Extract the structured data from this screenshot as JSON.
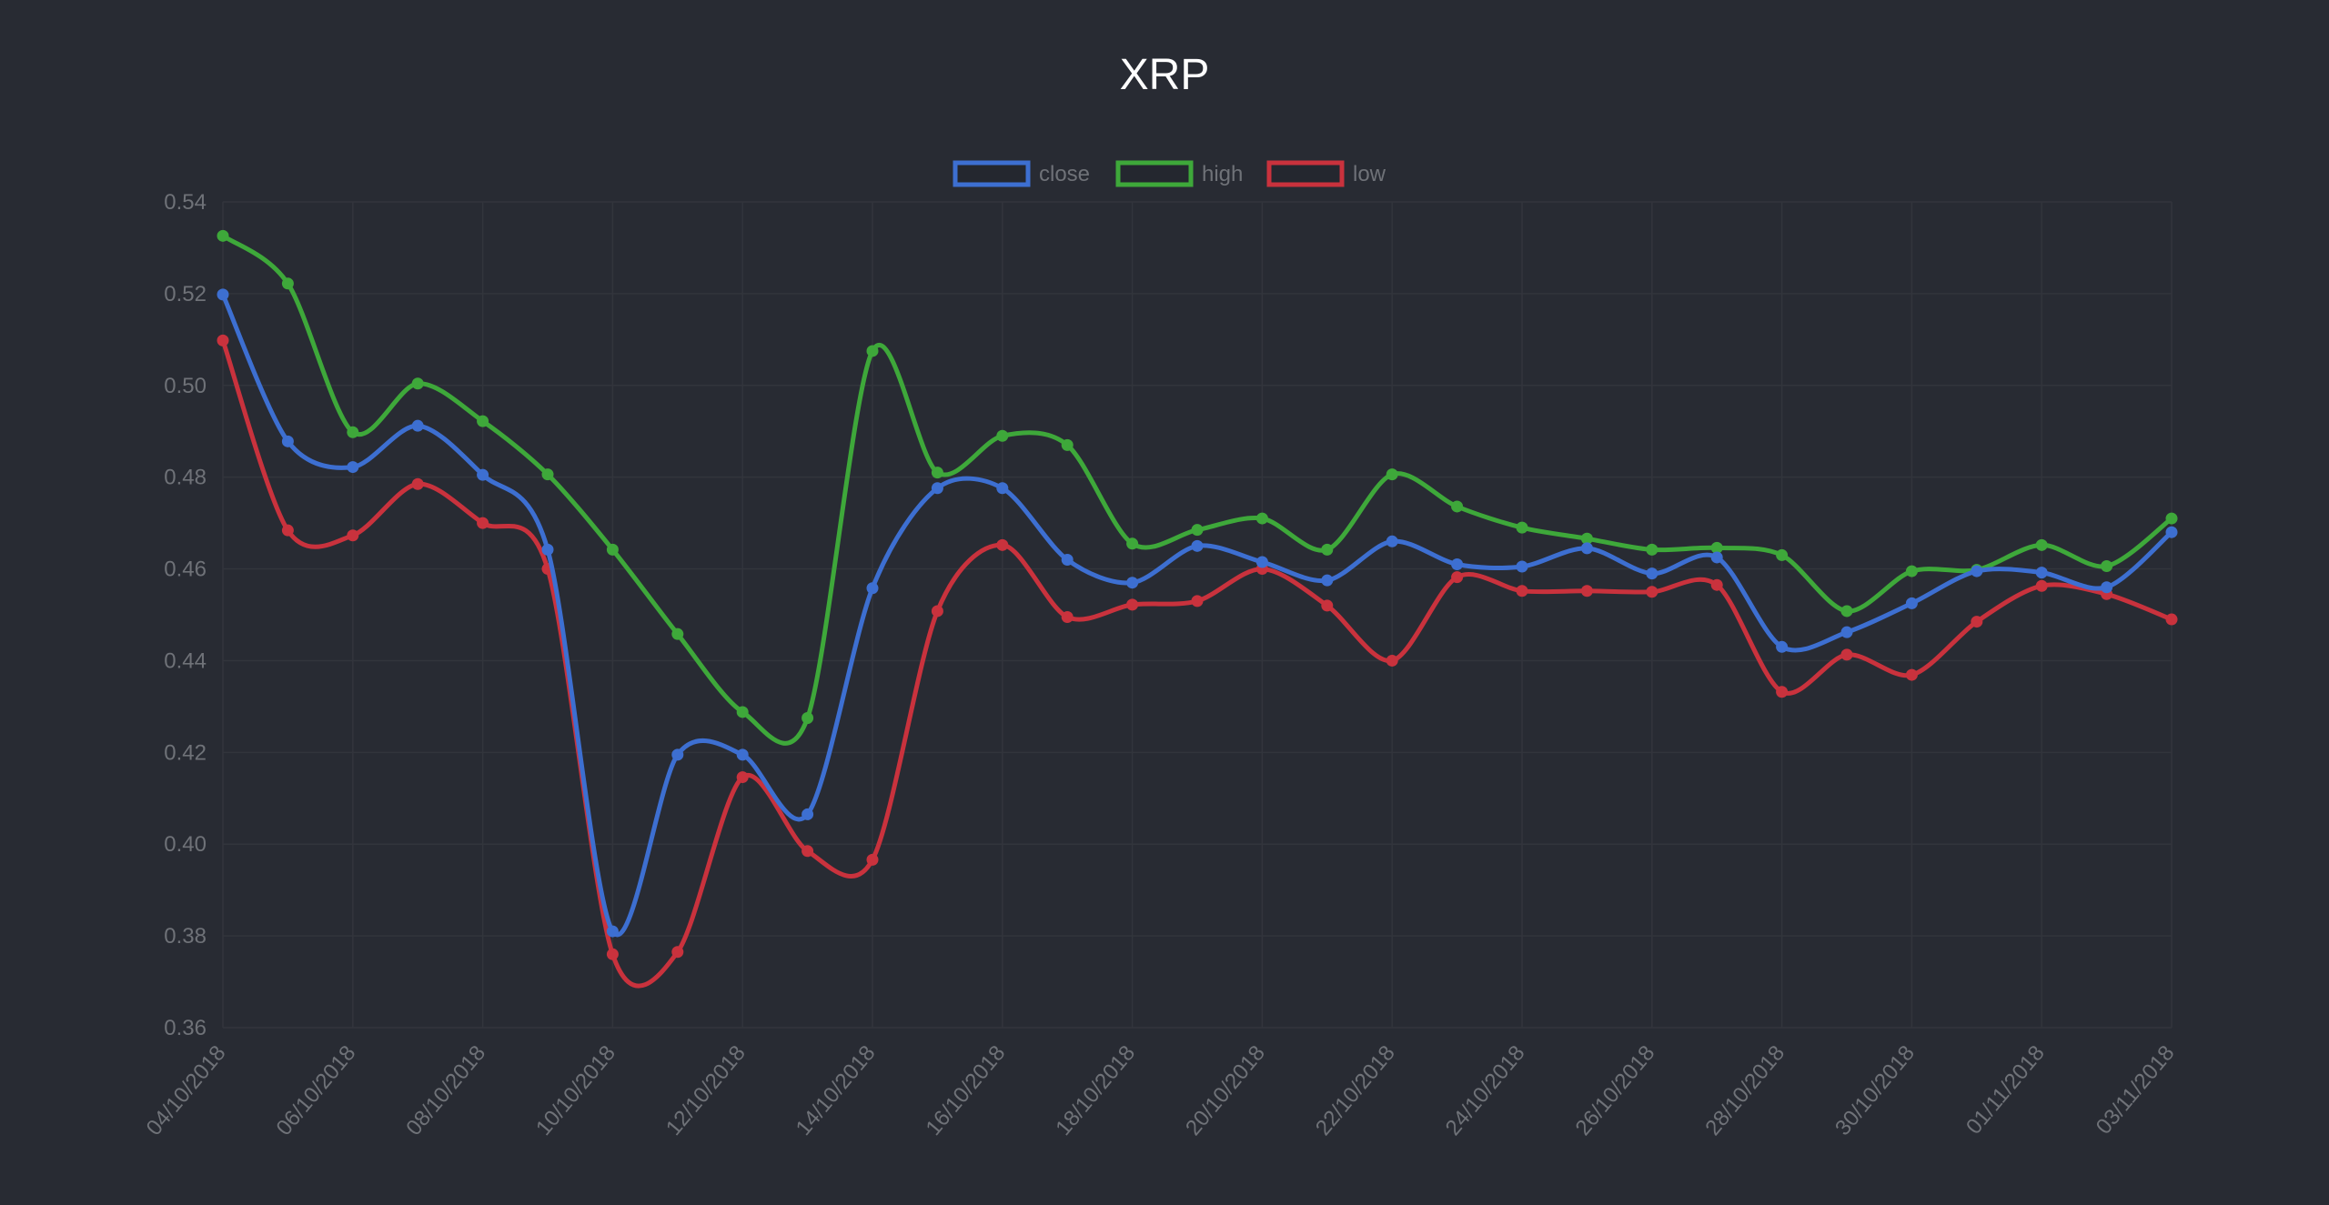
{
  "chart_data": {
    "type": "line",
    "title": "XRP",
    "xlabel": "",
    "ylabel": "",
    "x": [
      "04/10/2018",
      "05/10/2018",
      "06/10/2018",
      "07/10/2018",
      "08/10/2018",
      "09/10/2018",
      "10/10/2018",
      "11/10/2018",
      "12/10/2018",
      "13/10/2018",
      "14/10/2018",
      "15/10/2018",
      "16/10/2018",
      "17/10/2018",
      "18/10/2018",
      "19/10/2018",
      "20/10/2018",
      "21/10/2018",
      "22/10/2018",
      "23/10/2018",
      "24/10/2018",
      "25/10/2018",
      "26/10/2018",
      "27/10/2018",
      "28/10/2018",
      "29/10/2018",
      "30/10/2018",
      "31/10/2018",
      "01/11/2018",
      "02/11/2018",
      "03/11/2018"
    ],
    "x_tick_labels": [
      "04/10/2018",
      "06/10/2018",
      "08/10/2018",
      "10/10/2018",
      "12/10/2018",
      "14/10/2018",
      "16/10/2018",
      "18/10/2018",
      "20/10/2018",
      "22/10/2018",
      "24/10/2018",
      "26/10/2018",
      "28/10/2018",
      "30/10/2018",
      "01/11/2018",
      "03/11/2018"
    ],
    "y_ticks": [
      "0.36",
      "0.38",
      "0.40",
      "0.42",
      "0.44",
      "0.46",
      "0.48",
      "0.50",
      "0.52",
      "0.54"
    ],
    "ylim": [
      0.36,
      0.54
    ],
    "grid": true,
    "legend_position": "top-center",
    "series": [
      {
        "name": "close",
        "color": "#3d6fd1",
        "values": [
          0.5198,
          0.4878,
          0.4822,
          0.4912,
          0.4805,
          0.4642,
          0.381,
          0.4195,
          0.4195,
          0.4065,
          0.4558,
          0.4776,
          0.4776,
          0.462,
          0.457,
          0.465,
          0.4615,
          0.4575,
          0.466,
          0.461,
          0.4605,
          0.4645,
          0.459,
          0.4625,
          0.443,
          0.4462,
          0.4525,
          0.4595,
          0.4592,
          0.456,
          0.468
        ]
      },
      {
        "name": "high",
        "color": "#3ea83a",
        "values": [
          0.5326,
          0.5222,
          0.4898,
          0.5004,
          0.4922,
          0.4806,
          0.4642,
          0.4458,
          0.4288,
          0.4275,
          0.5075,
          0.481,
          0.489,
          0.487,
          0.4655,
          0.4685,
          0.471,
          0.4642,
          0.4806,
          0.4736,
          0.469,
          0.4666,
          0.4642,
          0.4646,
          0.463,
          0.4508,
          0.4595,
          0.4598,
          0.4652,
          0.4606,
          0.471
        ]
      },
      {
        "name": "low",
        "color": "#c9323d",
        "values": [
          0.5098,
          0.4684,
          0.4673,
          0.4785,
          0.47,
          0.46,
          0.376,
          0.3765,
          0.4146,
          0.3985,
          0.3966,
          0.4508,
          0.4652,
          0.4495,
          0.4522,
          0.453,
          0.46,
          0.452,
          0.44,
          0.4582,
          0.4552,
          0.4552,
          0.455,
          0.4565,
          0.4332,
          0.4413,
          0.4369,
          0.4485,
          0.4563,
          0.4545,
          0.449
        ]
      }
    ]
  }
}
